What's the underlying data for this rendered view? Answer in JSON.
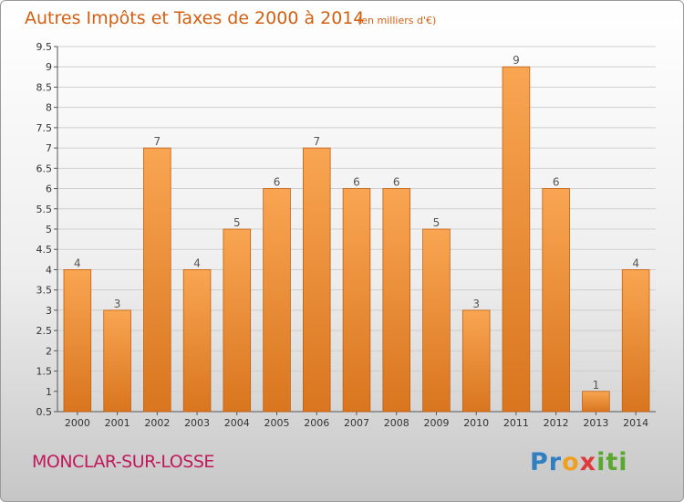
{
  "chart_data": {
    "type": "bar",
    "title": "Autres Impôts et Taxes de 2000 à 2014",
    "subtitle": "(en milliers d'€)",
    "categories": [
      "2000",
      "2001",
      "2002",
      "2003",
      "2004",
      "2005",
      "2006",
      "2007",
      "2008",
      "2009",
      "2010",
      "2011",
      "2012",
      "2013",
      "2014"
    ],
    "values": [
      4,
      3,
      7,
      4,
      5,
      6,
      7,
      6,
      6,
      5,
      3,
      9,
      6,
      1,
      4
    ],
    "data_labels": [
      "4",
      "3",
      "7",
      "4",
      "5",
      "6",
      "7",
      "6",
      "6",
      "5",
      "3",
      "9",
      "6",
      "1",
      "4"
    ],
    "yticks": [
      "0.5",
      "1",
      "1.5",
      "2",
      "2.5",
      "3",
      "3.5",
      "4",
      "4.5",
      "5",
      "5.5",
      "6",
      "6.5",
      "7",
      "7.5",
      "8",
      "8.5",
      "9",
      "9.5"
    ],
    "ylim": [
      0.5,
      9.5
    ],
    "xlabel": "",
    "ylabel": "",
    "grid": true,
    "legend": "none",
    "colors": {
      "bar_light": "#f9a552",
      "bar_dark": "#d9751f",
      "bar_edge": "#c06010",
      "grid": "#cfcfcf"
    }
  },
  "footer": {
    "commune": "MONCLAR-SUR-LOSSE",
    "logo_parts": [
      "Pr",
      "o",
      "x",
      "iti"
    ]
  }
}
